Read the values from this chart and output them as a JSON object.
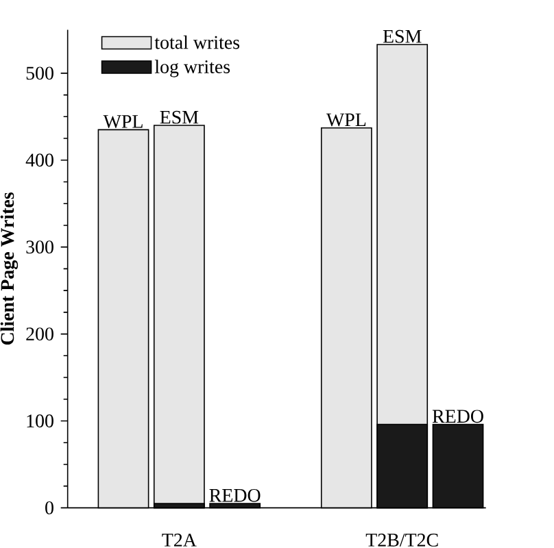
{
  "chart_data": {
    "type": "bar",
    "ylabel": "Client Page Writes",
    "categories": [
      "WPL",
      "ESM",
      "REDO",
      "WPL",
      "ESM",
      "REDO"
    ],
    "series": [
      {
        "name": "total writes",
        "color": "#e6e6e6",
        "values": [
          435,
          440,
          null,
          437,
          533,
          null
        ]
      },
      {
        "name": "log writes",
        "color": "#1a1a1a",
        "values": [
          null,
          5,
          5,
          null,
          96,
          96
        ]
      }
    ],
    "ylim": [
      0,
      550
    ],
    "yticks": [
      0,
      100,
      200,
      300,
      400,
      500
    ],
    "legend": "top left",
    "annotations": [
      "T2A",
      "T2B/T2C"
    ]
  }
}
